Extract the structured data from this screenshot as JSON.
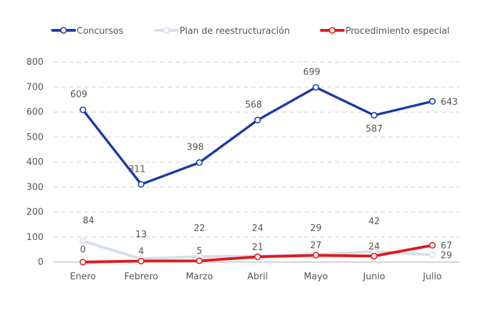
{
  "chart_data": {
    "type": "line",
    "categories": [
      "Enero",
      "Febrero",
      "Marzo",
      "Abril",
      "Mayo",
      "Junio",
      "Julio"
    ],
    "series": [
      {
        "name": "Concursos",
        "color": "#1a3aa6",
        "values": [
          609,
          311,
          398,
          568,
          699,
          587,
          643
        ]
      },
      {
        "name": "Plan de reestructuración",
        "color": "#d5deed",
        "values": [
          84,
          13,
          22,
          24,
          29,
          42,
          29
        ]
      },
      {
        "name": "Procedimiento especial",
        "color": "#e01a1a",
        "values": [
          0,
          4,
          5,
          21,
          27,
          24,
          67
        ]
      }
    ],
    "ylim": [
      0,
      800
    ],
    "yticks": [
      0,
      100,
      200,
      300,
      400,
      500,
      600,
      700,
      800
    ],
    "grid": true,
    "legend_position": "top"
  }
}
